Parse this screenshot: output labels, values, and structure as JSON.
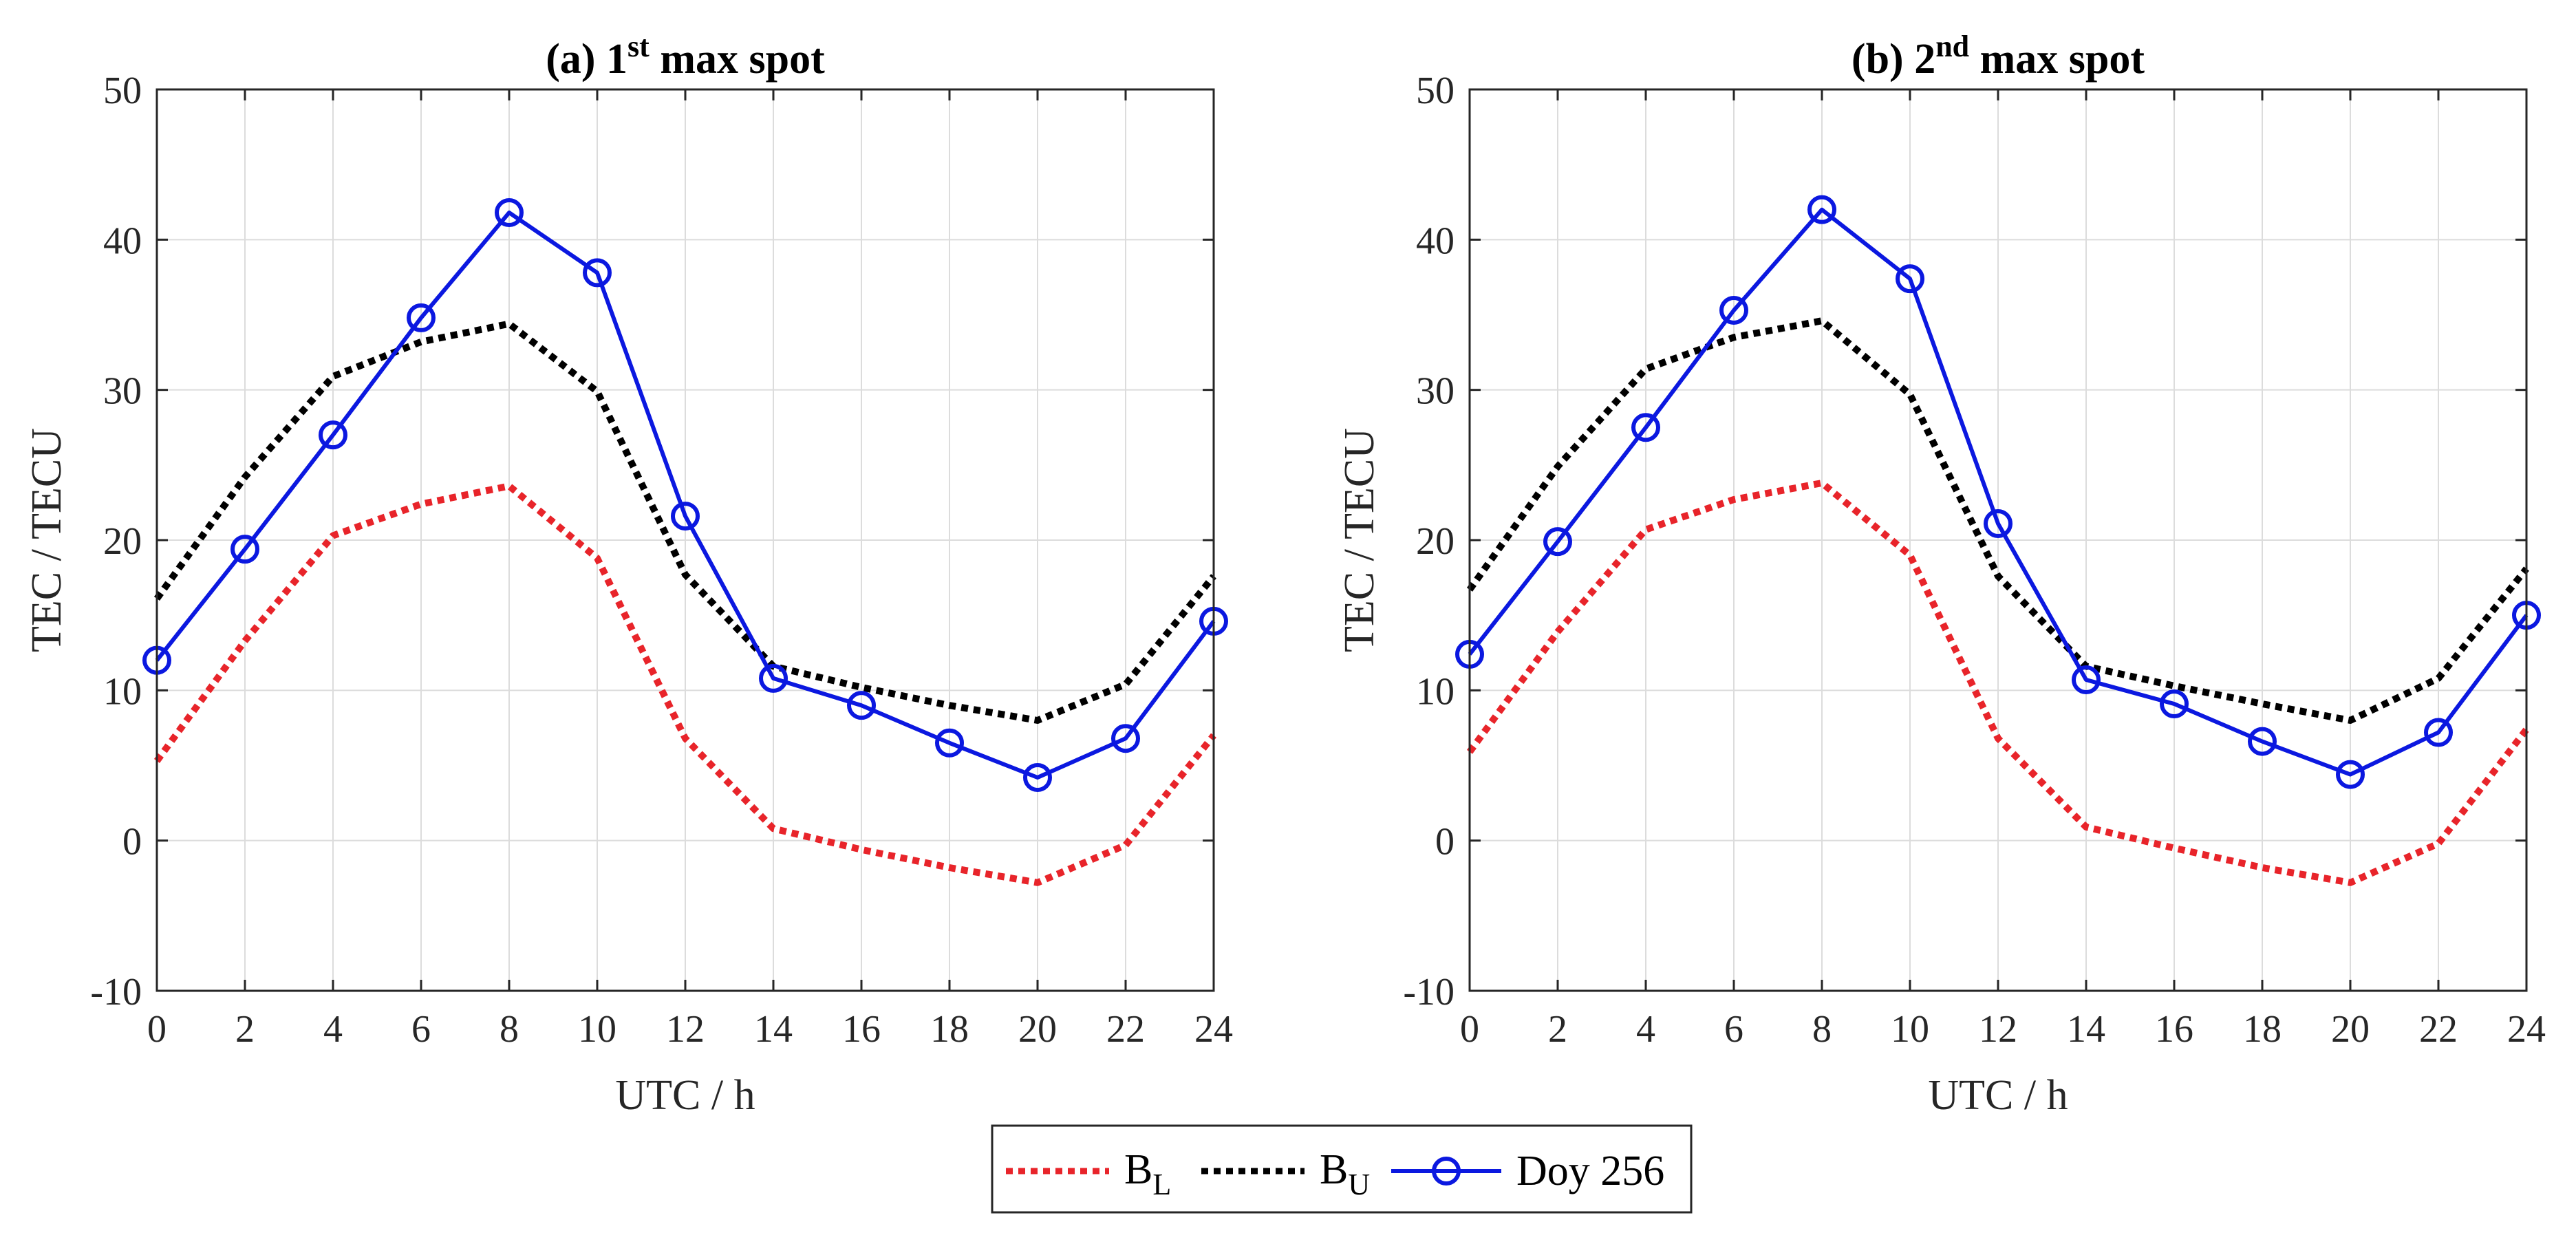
{
  "chart_data": [
    {
      "type": "line",
      "title": "(a) 1st max spot",
      "title_parts": {
        "prefix": "(a) 1",
        "sup": "st",
        "suffix": " max spot"
      },
      "xlabel": "UTC / h",
      "ylabel": "TEC / TECU",
      "xlim": [
        0,
        24
      ],
      "ylim": [
        -10,
        50
      ],
      "xticks": [
        0,
        2,
        4,
        6,
        8,
        10,
        12,
        14,
        16,
        18,
        20,
        22,
        24
      ],
      "yticks": [
        -10,
        0,
        10,
        20,
        30,
        40,
        50
      ],
      "grid": true,
      "x": [
        0,
        2,
        4,
        6,
        8,
        10,
        12,
        14,
        16,
        18,
        20,
        22,
        24
      ],
      "series": [
        {
          "name": "B_L",
          "color": "#e8242a",
          "style": "dotted",
          "values": [
            5.3,
            13.3,
            20.3,
            22.4,
            23.6,
            18.8,
            6.8,
            0.8,
            -0.6,
            -1.8,
            -2.8,
            -0.3,
            7.0
          ]
        },
        {
          "name": "B_U",
          "color": "#000000",
          "style": "dotted",
          "values": [
            16.1,
            24.2,
            30.9,
            33.2,
            34.4,
            29.9,
            17.7,
            11.6,
            10.2,
            9.0,
            8.0,
            10.4,
            17.6
          ]
        },
        {
          "name": "Doy 256",
          "color": "#0b18e0",
          "style": "solid-circle",
          "values": [
            12.0,
            19.4,
            27.0,
            34.8,
            41.8,
            37.8,
            21.6,
            10.8,
            9.0,
            6.5,
            4.2,
            6.8,
            14.6
          ]
        }
      ]
    },
    {
      "type": "line",
      "title": "(b) 2nd max spot",
      "title_parts": {
        "prefix": "(b) 2",
        "sup": "nd",
        "suffix": " max spot"
      },
      "xlabel": "UTC / h",
      "ylabel": "TEC / TECU",
      "xlim": [
        0,
        24
      ],
      "ylim": [
        -10,
        50
      ],
      "xticks": [
        0,
        2,
        4,
        6,
        8,
        10,
        12,
        14,
        16,
        18,
        20,
        22,
        24
      ],
      "yticks": [
        -10,
        0,
        10,
        20,
        30,
        40,
        50
      ],
      "grid": true,
      "x": [
        0,
        2,
        4,
        6,
        8,
        10,
        12,
        14,
        16,
        18,
        20,
        22,
        24
      ],
      "series": [
        {
          "name": "B_L",
          "color": "#e8242a",
          "style": "dotted",
          "values": [
            5.9,
            13.9,
            20.7,
            22.7,
            23.8,
            19.0,
            6.8,
            0.9,
            -0.5,
            -1.8,
            -2.8,
            -0.2,
            7.4
          ]
        },
        {
          "name": "B_U",
          "color": "#000000",
          "style": "dotted",
          "values": [
            16.7,
            24.9,
            31.4,
            33.5,
            34.6,
            29.7,
            17.6,
            11.6,
            10.3,
            9.1,
            8.0,
            10.8,
            18.1
          ]
        },
        {
          "name": "Doy 256",
          "color": "#0b18e0",
          "style": "solid-circle",
          "values": [
            12.4,
            19.9,
            27.5,
            35.3,
            42.0,
            37.4,
            21.1,
            10.7,
            9.1,
            6.6,
            4.4,
            7.2,
            15.0
          ]
        }
      ]
    }
  ],
  "legend": {
    "placement": "bottom-center",
    "entries": [
      {
        "base": "B",
        "sub": "L",
        "color": "#e8242a",
        "style": "dotted"
      },
      {
        "base": "B",
        "sub": "U",
        "color": "#000000",
        "style": "dotted"
      },
      {
        "label": "Doy 256",
        "color": "#0b18e0",
        "style": "solid-circle"
      }
    ]
  }
}
